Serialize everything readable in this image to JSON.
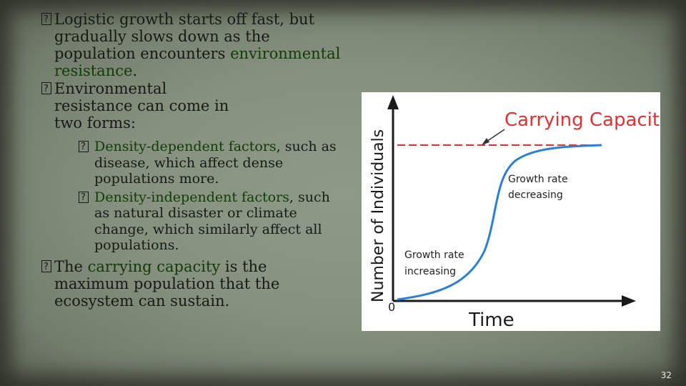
{
  "bullets": {
    "b1": {
      "text": "Logistic growth starts off fast, but gradually slows down as the population encounters ",
      "highlight": "environmental resistance",
      "tail": "."
    },
    "b2": {
      "text": "Environmental resistance can come in two forms:"
    },
    "sub1": {
      "highlight": "Density-dependent factors",
      "text": ", such as disease, which affect dense populations more."
    },
    "sub2": {
      "highlight": "Density-independent factors",
      "text": ", such as natural disaster or climate change, which similarly  affect all populations."
    },
    "b3": {
      "pre": "The ",
      "highlight": "carrying capacity",
      "text": " is the maximum population that the ecosystem can sustain."
    }
  },
  "figure": {
    "title_label": "Carrying Capacity",
    "ylabel": "Number of Individuals",
    "xlabel": "Time",
    "origin": "0",
    "note_decreasing_1": "Growth rate",
    "note_decreasing_2": "decreasing",
    "note_increasing_1": "Growth rate",
    "note_increasing_2": "increasing",
    "colors": {
      "curve": "#2b7fd6",
      "capacity": "#e03232",
      "axis": "#1a1a1a"
    }
  },
  "page_number": "32"
}
